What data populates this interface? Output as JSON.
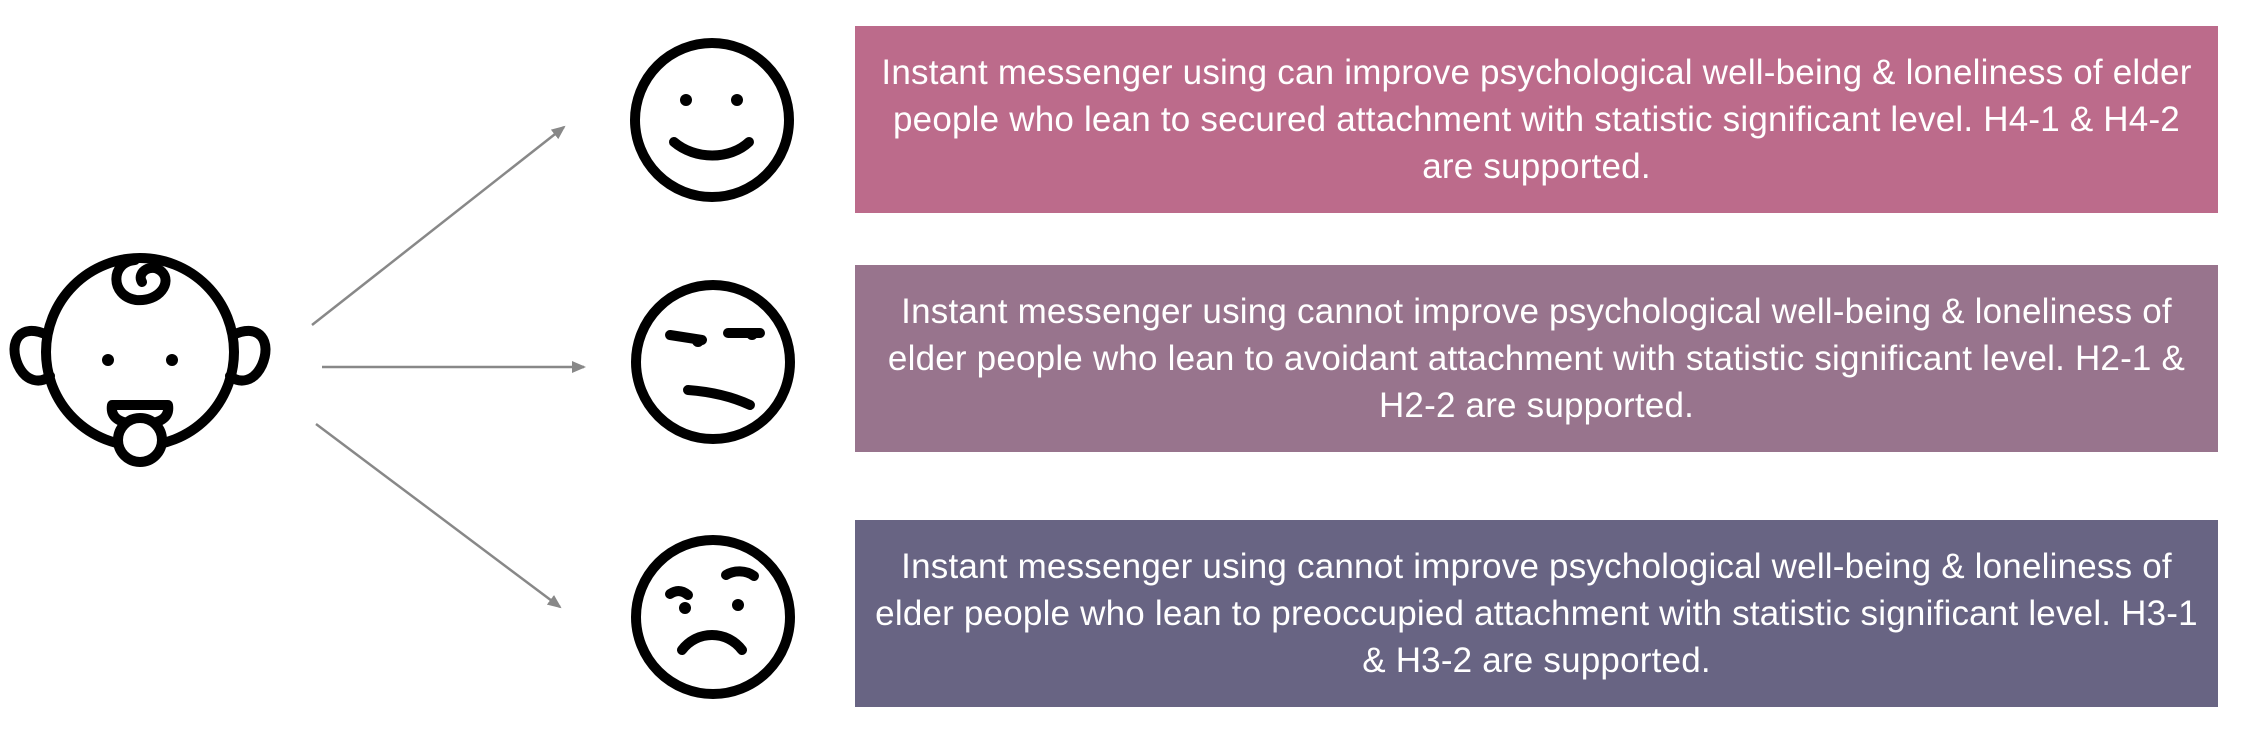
{
  "colors": {
    "background": "#ffffff",
    "icon_stroke": "#000000",
    "arrow": "#888888",
    "box_text": "#ffffff"
  },
  "source": {
    "icon": "baby-face-icon"
  },
  "outcomes": [
    {
      "icon": "smiling-face-icon",
      "color": "#bc6b8b",
      "text": "Instant messenger using can improve psychological well-being & loneliness of elder people who lean to secured attachment with statistic significant level. H4-1 & H4-2 are supported."
    },
    {
      "icon": "unamused-face-icon",
      "color": "#98748d",
      "text": "Instant messenger using cannot improve psychological well-being & loneliness of elder people who lean to avoidant attachment with statistic significant level. H2-1 & H2-2 are supported."
    },
    {
      "icon": "worried-face-icon",
      "color": "#686483",
      "text": "Instant messenger using cannot improve psychological well-being & loneliness of elder people who lean to preoccupied attachment with statistic significant level. H3-1 & H3-2 are supported."
    }
  ]
}
